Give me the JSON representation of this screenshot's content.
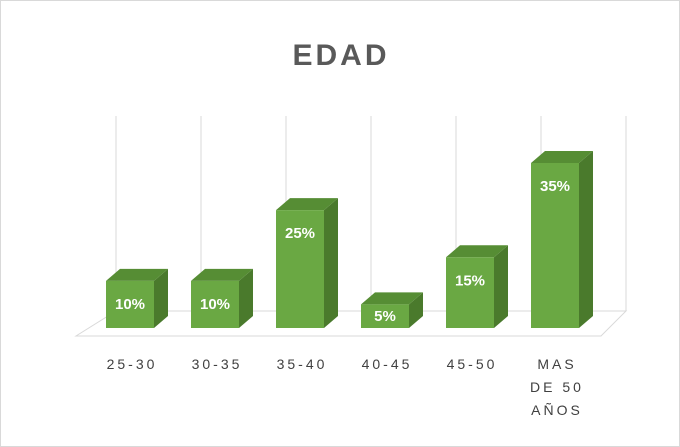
{
  "chart_data": {
    "type": "bar3d",
    "title": "EDAD",
    "categories": [
      "25-30",
      "30-35",
      "35-40",
      "40-45",
      "45-50",
      "MAS DE 50 AÑOS"
    ],
    "values": [
      10,
      10,
      25,
      5,
      15,
      35
    ],
    "value_labels": [
      "10%",
      "10%",
      "25%",
      "5%",
      "15%",
      "35%"
    ],
    "color": "#6aa843",
    "grid": true
  }
}
